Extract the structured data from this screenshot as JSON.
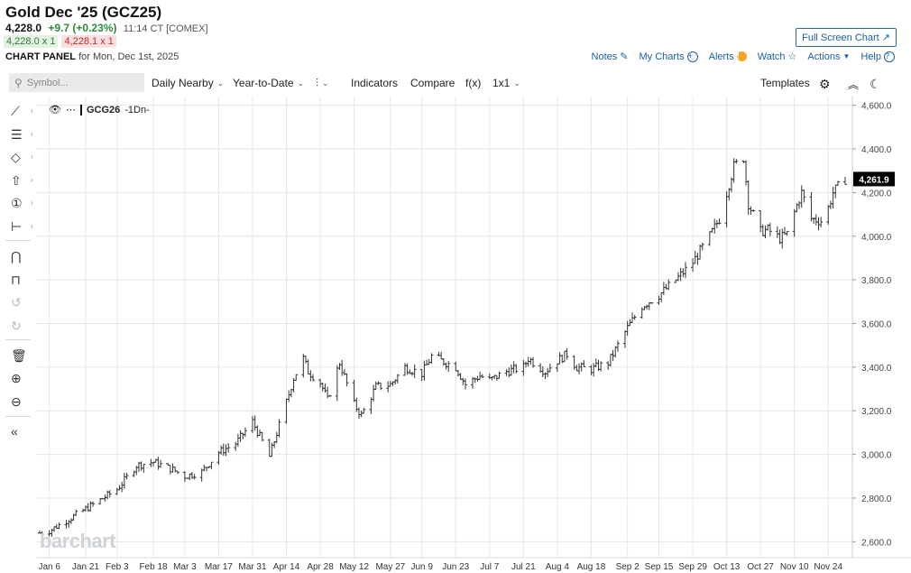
{
  "header": {
    "title": "Gold Dec '25 (GCZ25)",
    "last": "4,228.0",
    "change": "+9.7 (+0.23%)",
    "time": "11:14 CT [COMEX]",
    "bid": "4,228.0 x 1",
    "ask": "4,228.1 x 1",
    "panel_label": "CHART PANEL",
    "panel_date": " for Mon, Dec 1st, 2025"
  },
  "actions": {
    "full_screen": "Full Screen Chart",
    "notes": "Notes",
    "my_charts": "My Charts",
    "alerts": "Alerts",
    "watch": "Watch",
    "actions": "Actions",
    "help": "Help"
  },
  "toolbar": {
    "search_placeholder": "Symbol...",
    "daily_nearby": "Daily Nearby",
    "period": "Year-to-Date",
    "indicators": "Indicators",
    "compare": "Compare",
    "fx": "f(x)",
    "layout": "1x1",
    "templates": "Templates"
  },
  "legend": {
    "symbol": "GCG26",
    "suffix": "-1Dn-"
  },
  "watermark": "barchart",
  "colors": {
    "accent": "#1a5fa8",
    "positive": "#2e8b3a",
    "negative": "#c62828",
    "grid": "#e6e6e6",
    "bars": "#333333"
  },
  "chart_data": {
    "type": "bar",
    "style": "ohlc",
    "grid": true,
    "ylim": [
      2560,
      4640
    ],
    "y_ticks": [
      "4,600.0",
      "4,400.0",
      "4,200.0",
      "4,000.0",
      "3,800.0",
      "3,600.0",
      "3,400.0",
      "3,200.0",
      "3,000.0",
      "2,800.0",
      "2,600.0"
    ],
    "x_ticks": [
      "Jan 6",
      "Jan 21",
      "Feb 3",
      "Feb 18",
      "Mar 3",
      "Mar 17",
      "Mar 31",
      "Apr 14",
      "Apr 28",
      "May 12",
      "May 27",
      "Jun 9",
      "Jun 23",
      "Jul 7",
      "Jul 21",
      "Aug 4",
      "Aug 18",
      "Sep 2",
      "Sep 15",
      "Sep 29",
      "Oct 13",
      "Oct 27",
      "Nov 10",
      "Nov 24"
    ],
    "last_price_label": "4,261.9",
    "anchors": [
      [
        "Jan 2",
        2640
      ],
      [
        "Jan 6",
        2650
      ],
      [
        "Jan 21",
        2750
      ],
      [
        "Feb 3",
        2840
      ],
      [
        "Feb 11",
        2950
      ],
      [
        "Feb 18",
        2965
      ],
      [
        "Feb 26",
        2930
      ],
      [
        "Mar 3",
        2900
      ],
      [
        "Mar 10",
        2920
      ],
      [
        "Mar 17",
        3010
      ],
      [
        "Mar 24",
        3050
      ],
      [
        "Mar 31",
        3150
      ],
      [
        "Apr 7",
        2990
      ],
      [
        "Apr 14",
        3240
      ],
      [
        "Apr 17",
        3350
      ],
      [
        "Apr 21",
        3440
      ],
      [
        "Apr 23",
        3380
      ],
      [
        "Apr 28",
        3330
      ],
      [
        "May 1",
        3250
      ],
      [
        "May 6",
        3420
      ],
      [
        "May 12",
        3230
      ],
      [
        "May 15",
        3180
      ],
      [
        "May 21",
        3310
      ],
      [
        "May 27",
        3320
      ],
      [
        "Jun 2",
        3400
      ],
      [
        "Jun 9",
        3370
      ],
      [
        "Jun 13",
        3450
      ],
      [
        "Jun 23",
        3400
      ],
      [
        "Jun 27",
        3320
      ],
      [
        "Jul 3",
        3360
      ],
      [
        "Jul 7",
        3340
      ],
      [
        "Jul 14",
        3380
      ],
      [
        "Jul 21",
        3400
      ],
      [
        "Jul 23",
        3440
      ],
      [
        "Jul 30",
        3380
      ],
      [
        "Aug 4",
        3430
      ],
      [
        "Aug 8",
        3460
      ],
      [
        "Aug 12",
        3400
      ],
      [
        "Aug 18",
        3390
      ],
      [
        "Aug 25",
        3420
      ],
      [
        "Sep 2",
        3580
      ],
      [
        "Sep 8",
        3680
      ],
      [
        "Sep 15",
        3730
      ],
      [
        "Sep 22",
        3800
      ],
      [
        "Sep 29",
        3880
      ],
      [
        "Oct 6",
        4000
      ],
      [
        "Oct 10",
        4080
      ],
      [
        "Oct 13",
        4200
      ],
      [
        "Oct 16",
        4320
      ],
      [
        "Oct 20",
        4360
      ],
      [
        "Oct 22",
        4150
      ],
      [
        "Oct 27",
        4020
      ],
      [
        "Oct 30",
        4030
      ],
      [
        "Nov 4",
        3990
      ],
      [
        "Nov 7",
        4010
      ],
      [
        "Nov 10",
        4110
      ],
      [
        "Nov 13",
        4200
      ],
      [
        "Nov 17",
        4080
      ],
      [
        "Nov 21",
        4070
      ],
      [
        "Nov 24",
        4130
      ],
      [
        "Nov 26",
        4200
      ],
      [
        "Dec 1",
        4262
      ]
    ]
  }
}
